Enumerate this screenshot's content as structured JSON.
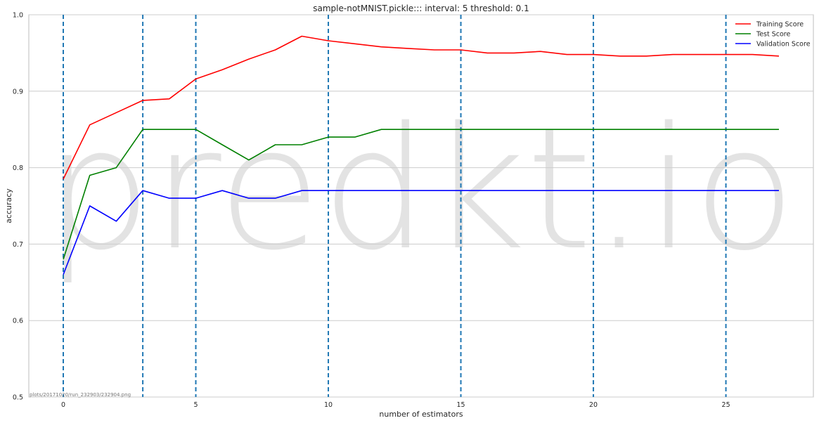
{
  "chart_data": {
    "type": "line",
    "title": "sample-notMNIST.pickle::: interval: 5 threshold: 0.1",
    "xlabel": "number of estimators",
    "ylabel": "accuracy",
    "xlim": [
      -1.3,
      28.3
    ],
    "ylim": [
      0.5,
      1.0
    ],
    "xticks": [
      0,
      5,
      10,
      15,
      20,
      25
    ],
    "xtick_labels": [
      "0",
      "5",
      "10",
      "15",
      "20",
      "25"
    ],
    "yticks": [
      0.5,
      0.6,
      0.7,
      0.8,
      0.9,
      1.0
    ],
    "ytick_labels": [
      "0.5",
      "0.6",
      "0.7",
      "0.8",
      "0.9",
      "1.0"
    ],
    "grid": true,
    "legend_position": "top-right",
    "x": [
      0,
      1,
      2,
      3,
      4,
      5,
      6,
      7,
      8,
      9,
      10,
      11,
      12,
      13,
      14,
      15,
      16,
      17,
      18,
      19,
      20,
      21,
      22,
      23,
      24,
      25,
      26,
      27
    ],
    "series": [
      {
        "name": "Training Score",
        "color": "#ff0000",
        "values": [
          0.785,
          0.856,
          0.872,
          0.888,
          0.89,
          0.916,
          0.928,
          0.942,
          0.954,
          0.972,
          0.966,
          0.962,
          0.958,
          0.956,
          0.954,
          0.954,
          0.95,
          0.95,
          0.952,
          0.948,
          0.948,
          0.946,
          0.946,
          0.948,
          0.948,
          0.948,
          0.948,
          0.946
        ]
      },
      {
        "name": "Test Score",
        "color": "#008000",
        "values": [
          0.68,
          0.79,
          0.8,
          0.85,
          0.85,
          0.85,
          0.83,
          0.81,
          0.83,
          0.83,
          0.84,
          0.84,
          0.85,
          0.85,
          0.85,
          0.85,
          0.85,
          0.85,
          0.85,
          0.85,
          0.85,
          0.85,
          0.85,
          0.85,
          0.85,
          0.85,
          0.85,
          0.85
        ]
      },
      {
        "name": "Validation Score",
        "color": "#0000ff",
        "values": [
          0.66,
          0.75,
          0.73,
          0.77,
          0.76,
          0.76,
          0.77,
          0.76,
          0.76,
          0.77,
          0.77,
          0.77,
          0.77,
          0.77,
          0.77,
          0.77,
          0.77,
          0.77,
          0.77,
          0.77,
          0.77,
          0.77,
          0.77,
          0.77,
          0.77,
          0.77,
          0.77,
          0.77
        ]
      }
    ],
    "vlines": [
      0,
      3,
      5,
      10,
      15,
      20,
      25
    ],
    "vline_color": "#1f77b4",
    "watermark": "predkt.io",
    "footnote": "plots/20171020/run_232903/232904.png"
  }
}
